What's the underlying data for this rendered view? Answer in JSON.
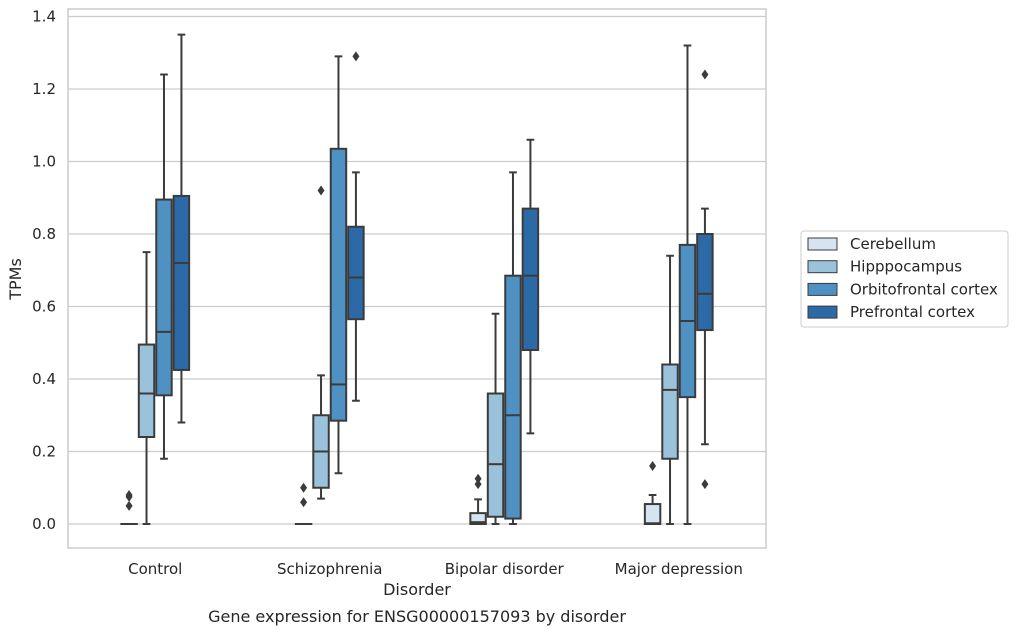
{
  "chart_data": {
    "type": "box",
    "title": "",
    "caption": "Gene expression for ENSG00000157093 by disorder",
    "xlabel": "Disorder",
    "ylabel": "TPMs",
    "ylim": [
      -0.065,
      1.42
    ],
    "yticks": [
      "0.0",
      "0.2",
      "0.4",
      "0.6",
      "0.8",
      "1.0",
      "1.2",
      "1.4"
    ],
    "ytick_values": [
      0,
      0.2,
      0.4,
      0.6,
      0.8,
      1.0,
      1.2,
      1.4
    ],
    "grid": "horizontal",
    "legend_position": "right",
    "categories": [
      "Control",
      "Schizophrenia",
      "Bipolar disorder",
      "Major depression"
    ],
    "series": [
      {
        "name": "Cerebellum",
        "color": "#d6e4f2",
        "boxes": [
          {
            "min": 0,
            "q1": 0,
            "median": 0,
            "q3": 0,
            "max": 0,
            "outliers": [
              0.05,
              0.075,
              0.08
            ]
          },
          {
            "min": 0,
            "q1": 0,
            "median": 0,
            "q3": 0,
            "max": 0,
            "outliers": [
              0.06,
              0.1
            ]
          },
          {
            "min": 0,
            "q1": 0,
            "median": 0.005,
            "q3": 0.03,
            "max": 0.068,
            "outliers": [
              0.11,
              0.125
            ]
          },
          {
            "min": 0,
            "q1": 0,
            "median": 0.002,
            "q3": 0.055,
            "max": 0.08,
            "outliers": [
              0.16
            ]
          }
        ]
      },
      {
        "name": "Hipppocampus",
        "color": "#9ac3db",
        "boxes": [
          {
            "min": 0,
            "q1": 0.24,
            "median": 0.36,
            "q3": 0.495,
            "max": 0.75,
            "outliers": []
          },
          {
            "min": 0.07,
            "q1": 0.1,
            "median": 0.2,
            "q3": 0.3,
            "max": 0.41,
            "outliers": [
              0.92
            ]
          },
          {
            "min": 0,
            "q1": 0.02,
            "median": 0.165,
            "q3": 0.36,
            "max": 0.58,
            "outliers": []
          },
          {
            "min": 0,
            "q1": 0.18,
            "median": 0.37,
            "q3": 0.44,
            "max": 0.74,
            "outliers": []
          }
        ]
      },
      {
        "name": "Orbitofrontal cortex",
        "color": "#4f91c3",
        "boxes": [
          {
            "min": 0.18,
            "q1": 0.355,
            "median": 0.53,
            "q3": 0.895,
            "max": 1.24,
            "outliers": []
          },
          {
            "min": 0.14,
            "q1": 0.285,
            "median": 0.385,
            "q3": 1.035,
            "max": 1.29,
            "outliers": []
          },
          {
            "min": 0,
            "q1": 0.015,
            "median": 0.3,
            "q3": 0.685,
            "max": 0.97,
            "outliers": []
          },
          {
            "min": 0,
            "q1": 0.35,
            "median": 0.56,
            "q3": 0.77,
            "max": 1.32,
            "outliers": []
          }
        ]
      },
      {
        "name": "Prefrontal cortex",
        "color": "#2b6aa6",
        "boxes": [
          {
            "min": 0.28,
            "q1": 0.425,
            "median": 0.72,
            "q3": 0.905,
            "max": 1.35,
            "outliers": []
          },
          {
            "min": 0.34,
            "q1": 0.565,
            "median": 0.68,
            "q3": 0.82,
            "max": 0.97,
            "outliers": [
              1.29
            ]
          },
          {
            "min": 0.25,
            "q1": 0.48,
            "median": 0.685,
            "q3": 0.87,
            "max": 1.06,
            "outliers": []
          },
          {
            "min": 0.22,
            "q1": 0.535,
            "median": 0.635,
            "q3": 0.8,
            "max": 0.87,
            "outliers": [
              0.11,
              1.24
            ]
          }
        ]
      }
    ],
    "colors": {
      "box_edge": "#3b3b3b",
      "grid": "#cccccc",
      "frame": "#cccccc"
    }
  }
}
